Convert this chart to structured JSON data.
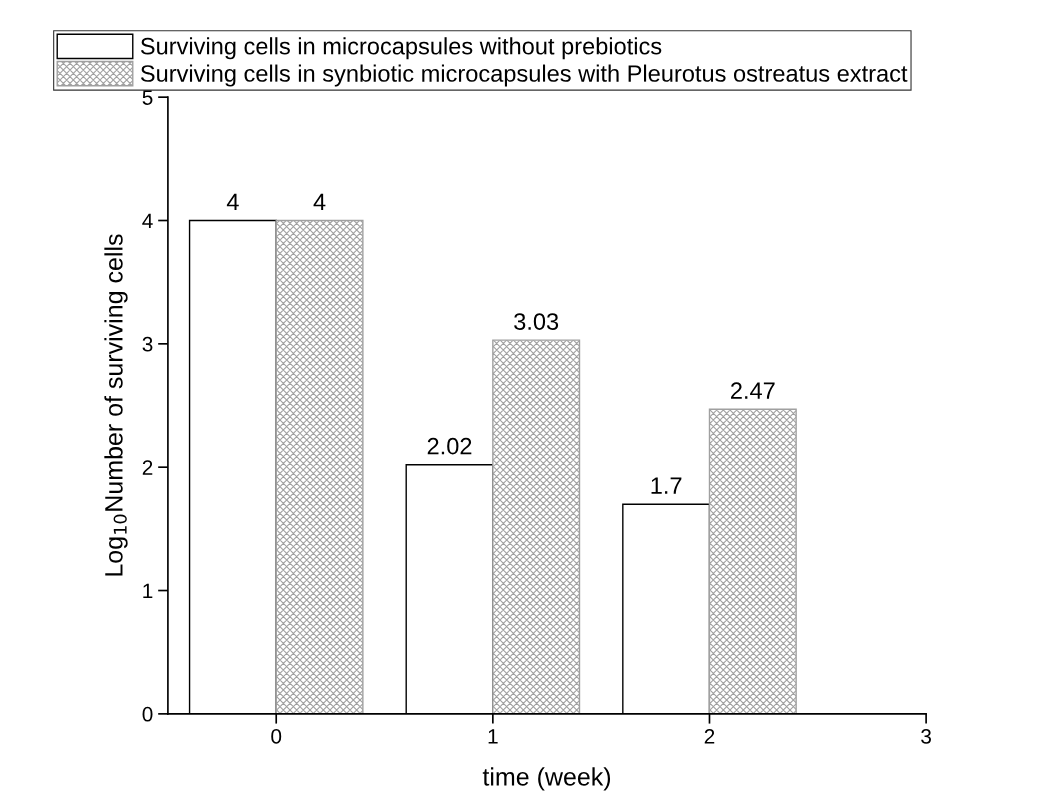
{
  "chart_data": {
    "type": "bar",
    "xlabel": "time (week)",
    "ylabel": "Log$_{10}$Number of surviving cells",
    "x": [
      0,
      1,
      2
    ],
    "xlim": [
      -0.5,
      3
    ],
    "xticks": [
      0,
      1,
      2,
      3
    ],
    "ylim": [
      0,
      5
    ],
    "yticks": [
      0,
      1,
      2,
      3,
      4,
      5
    ],
    "series": [
      {
        "name": "Surviving cells in microcapsules without prebiotics",
        "color": "#ffffff",
        "values": [
          4,
          2.02,
          1.7
        ]
      },
      {
        "name": "Surviving cells in synbiotic microcapsules with Pleurotus ostreatus extract",
        "color": "#a0a0a0",
        "values": [
          4,
          3.03,
          2.47
        ]
      }
    ],
    "data_labels": true,
    "grid": false,
    "legend": "top left"
  }
}
